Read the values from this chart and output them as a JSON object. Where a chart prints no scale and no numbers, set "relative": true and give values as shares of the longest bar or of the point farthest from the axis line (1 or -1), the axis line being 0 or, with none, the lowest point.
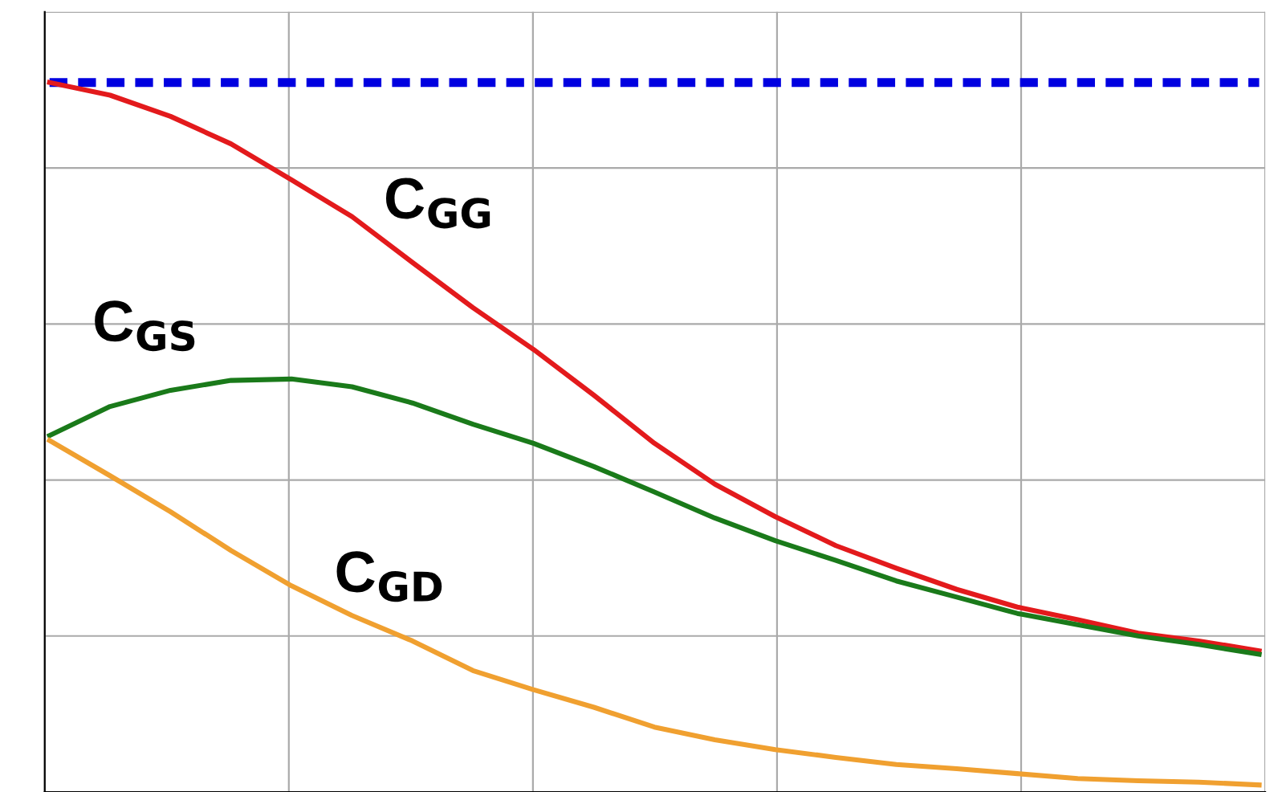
{
  "chart_data": {
    "type": "line",
    "relative": true,
    "grid": true,
    "legend": false,
    "categories": [
      null,
      null,
      null,
      null,
      null,
      null,
      null,
      null,
      null,
      null,
      null,
      null,
      null,
      null,
      null,
      null,
      null,
      null,
      null,
      null,
      null
    ],
    "series": [
      {
        "line_style": "dashed",
        "color": "#0000e0",
        "values": [
          1.0,
          1.0,
          1.0,
          1.0,
          1.0,
          1.0,
          1.0,
          1.0,
          1.0,
          1.0,
          1.0,
          1.0,
          1.0,
          1.0,
          1.0,
          1.0,
          1.0,
          1.0,
          1.0,
          1.0,
          1.0
        ]
      },
      {
        "name": "C$_{GG}$",
        "color": "#e31a1c",
        "values": [
          1.0,
          0.982,
          0.952,
          0.913,
          0.862,
          0.81,
          0.745,
          0.681,
          0.622,
          0.557,
          0.489,
          0.431,
          0.385,
          0.344,
          0.312,
          0.282,
          0.257,
          0.239,
          0.22,
          0.209,
          0.195
        ]
      },
      {
        "name": "C$_{GS}$",
        "color": "#1a7a1a",
        "values": [
          0.5,
          0.541,
          0.564,
          0.578,
          0.58,
          0.569,
          0.546,
          0.516,
          0.489,
          0.456,
          0.42,
          0.383,
          0.351,
          0.323,
          0.294,
          0.271,
          0.248,
          0.232,
          0.216,
          0.204,
          0.19
        ]
      },
      {
        "name": "C$_{GD}$",
        "color": "#f0a030",
        "values": [
          0.493,
          0.443,
          0.392,
          0.337,
          0.287,
          0.245,
          0.209,
          0.167,
          0.14,
          0.115,
          0.087,
          0.069,
          0.055,
          0.044,
          0.034,
          0.028,
          0.021,
          0.014,
          0.011,
          0.009,
          0.005
        ]
      }
    ]
  }
}
